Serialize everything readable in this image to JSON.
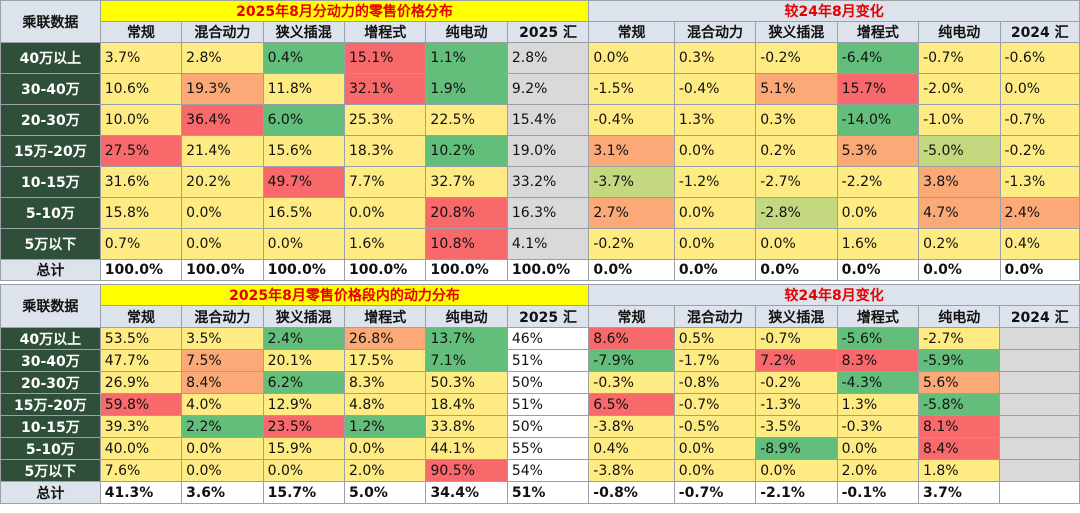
{
  "colors": {
    "red": "#f8696b",
    "orange": "#fbaa77",
    "yellow": "#ffeb84",
    "lime": "#c4d97f",
    "green": "#63be7b",
    "gray": "#d9d9d9",
    "header": "#dde3ec",
    "dark": "#2f4f3a"
  },
  "corner_label": "乘联数据",
  "columns": [
    "常规",
    "混合动力",
    "狭义插混",
    "增程式",
    "纯电动",
    "2025 汇"
  ],
  "columns_change": [
    "常规",
    "混合动力",
    "狭义插混",
    "增程式",
    "纯电动",
    "2024 汇"
  ],
  "chart_data": [
    {
      "type": "table",
      "title": "2025年8月分动力的零售价格分布",
      "change_title": "较24年8月变化",
      "rows": [
        {
          "label": "40万以上",
          "values": [
            "3.7%",
            "2.8%",
            "0.4%",
            "15.1%",
            "1.1%",
            "2.8%"
          ],
          "change": [
            "0.0%",
            "0.3%",
            "-0.2%",
            "-6.4%",
            "-0.7%",
            "-0.6%"
          ]
        },
        {
          "label": "30-40万",
          "values": [
            "10.6%",
            "19.3%",
            "11.8%",
            "32.1%",
            "1.9%",
            "9.2%"
          ],
          "change": [
            "-1.5%",
            "-0.4%",
            "5.1%",
            "15.7%",
            "-2.0%",
            "0.0%"
          ]
        },
        {
          "label": "20-30万",
          "values": [
            "10.0%",
            "36.4%",
            "6.0%",
            "25.3%",
            "22.5%",
            "15.4%"
          ],
          "change": [
            "-0.4%",
            "1.3%",
            "0.3%",
            "-14.0%",
            "-1.0%",
            "-0.7%"
          ]
        },
        {
          "label": "15万-20万",
          "values": [
            "27.5%",
            "21.4%",
            "15.6%",
            "18.3%",
            "10.2%",
            "19.0%"
          ],
          "change": [
            "3.1%",
            "0.0%",
            "0.2%",
            "5.3%",
            "-5.0%",
            "-0.2%"
          ]
        },
        {
          "label": "10-15万",
          "values": [
            "31.6%",
            "20.2%",
            "49.7%",
            "7.7%",
            "32.7%",
            "33.2%"
          ],
          "change": [
            "-3.7%",
            "-1.2%",
            "-2.7%",
            "-2.2%",
            "3.8%",
            "-1.3%"
          ]
        },
        {
          "label": "5-10万",
          "values": [
            "15.8%",
            "0.0%",
            "16.5%",
            "0.0%",
            "20.8%",
            "16.3%"
          ],
          "change": [
            "2.7%",
            "0.0%",
            "-2.8%",
            "0.0%",
            "4.7%",
            "2.4%"
          ]
        },
        {
          "label": "5万以下",
          "values": [
            "0.7%",
            "0.0%",
            "0.0%",
            "1.6%",
            "10.8%",
            "4.1%"
          ],
          "change": [
            "-0.2%",
            "0.0%",
            "0.0%",
            "1.6%",
            "0.2%",
            "0.4%"
          ]
        }
      ],
      "total": {
        "label": "总计",
        "values": [
          "100.0%",
          "100.0%",
          "100.0%",
          "100.0%",
          "100.0%",
          "100.0%"
        ],
        "change": [
          "0.0%",
          "0.0%",
          "0.0%",
          "0.0%",
          "0.0%",
          "0.0%"
        ]
      },
      "fills": [
        [
          "yellow",
          "yellow",
          "green",
          "red",
          "green",
          "gray",
          "yellow",
          "yellow",
          "yellow",
          "green",
          "yellow",
          "yellow"
        ],
        [
          "yellow",
          "orange",
          "yellow",
          "red",
          "green",
          "gray",
          "yellow",
          "yellow",
          "orange",
          "red",
          "yellow",
          "yellow"
        ],
        [
          "yellow",
          "red",
          "green",
          "yellow",
          "yellow",
          "gray",
          "yellow",
          "yellow",
          "yellow",
          "green",
          "yellow",
          "yellow"
        ],
        [
          "red",
          "yellow",
          "yellow",
          "yellow",
          "green",
          "gray",
          "orange",
          "yellow",
          "yellow",
          "orange",
          "lime",
          "yellow"
        ],
        [
          "yellow",
          "yellow",
          "red",
          "yellow",
          "yellow",
          "gray",
          "lime",
          "yellow",
          "yellow",
          "yellow",
          "orange",
          "yellow"
        ],
        [
          "yellow",
          "yellow",
          "yellow",
          "yellow",
          "red",
          "gray",
          "orange",
          "yellow",
          "lime",
          "yellow",
          "orange",
          "orange"
        ],
        [
          "yellow",
          "yellow",
          "yellow",
          "yellow",
          "red",
          "gray",
          "yellow",
          "yellow",
          "yellow",
          "yellow",
          "yellow",
          "yellow"
        ]
      ]
    },
    {
      "type": "table",
      "title": "2025年8月零售价格段内的动力分布",
      "change_title": "较24年8月变化",
      "rows": [
        {
          "label": "40万以上",
          "values": [
            "53.5%",
            "3.5%",
            "2.4%",
            "26.8%",
            "13.7%",
            "46%"
          ],
          "change": [
            "8.6%",
            "0.5%",
            "-0.7%",
            "-5.6%",
            "-2.7%",
            ""
          ]
        },
        {
          "label": "30-40万",
          "values": [
            "47.7%",
            "7.5%",
            "20.1%",
            "17.5%",
            "7.1%",
            "51%"
          ],
          "change": [
            "-7.9%",
            "-1.7%",
            "7.2%",
            "8.3%",
            "-5.9%",
            ""
          ]
        },
        {
          "label": "20-30万",
          "values": [
            "26.9%",
            "8.4%",
            "6.2%",
            "8.3%",
            "50.3%",
            "50%"
          ],
          "change": [
            "-0.3%",
            "-0.8%",
            "-0.2%",
            "-4.3%",
            "5.6%",
            ""
          ]
        },
        {
          "label": "15万-20万",
          "values": [
            "59.8%",
            "4.0%",
            "12.9%",
            "4.8%",
            "18.4%",
            "51%"
          ],
          "change": [
            "6.5%",
            "-0.7%",
            "-1.3%",
            "1.3%",
            "-5.8%",
            ""
          ]
        },
        {
          "label": "10-15万",
          "values": [
            "39.3%",
            "2.2%",
            "23.5%",
            "1.2%",
            "33.8%",
            "50%"
          ],
          "change": [
            "-3.8%",
            "-0.5%",
            "-3.5%",
            "-0.3%",
            "8.1%",
            ""
          ]
        },
        {
          "label": "5-10万",
          "values": [
            "40.0%",
            "0.0%",
            "15.9%",
            "0.0%",
            "44.1%",
            "55%"
          ],
          "change": [
            "0.4%",
            "0.0%",
            "-8.9%",
            "0.0%",
            "8.4%",
            ""
          ]
        },
        {
          "label": "5万以下",
          "values": [
            "7.6%",
            "0.0%",
            "0.0%",
            "2.0%",
            "90.5%",
            "54%"
          ],
          "change": [
            "-3.8%",
            "0.0%",
            "0.0%",
            "2.0%",
            "1.8%",
            ""
          ]
        }
      ],
      "total": {
        "label": "总计",
        "values": [
          "41.3%",
          "3.6%",
          "15.7%",
          "5.0%",
          "34.4%",
          "51%"
        ],
        "change": [
          "-0.8%",
          "-0.7%",
          "-2.1%",
          "-0.1%",
          "3.7%",
          ""
        ]
      },
      "fills": [
        [
          "yellow",
          "yellow",
          "green",
          "orange",
          "green",
          "white",
          "red",
          "yellow",
          "yellow",
          "green",
          "yellow",
          "gray"
        ],
        [
          "yellow",
          "orange",
          "yellow",
          "yellow",
          "green",
          "white",
          "green",
          "yellow",
          "red",
          "red",
          "green",
          "gray"
        ],
        [
          "yellow",
          "orange",
          "green",
          "yellow",
          "yellow",
          "white",
          "yellow",
          "yellow",
          "yellow",
          "green",
          "orange",
          "gray"
        ],
        [
          "red",
          "yellow",
          "yellow",
          "yellow",
          "yellow",
          "white",
          "red",
          "yellow",
          "yellow",
          "yellow",
          "green",
          "gray"
        ],
        [
          "yellow",
          "green",
          "red",
          "green",
          "yellow",
          "white",
          "yellow",
          "yellow",
          "yellow",
          "yellow",
          "red",
          "gray"
        ],
        [
          "yellow",
          "yellow",
          "yellow",
          "yellow",
          "yellow",
          "white",
          "yellow",
          "yellow",
          "green",
          "yellow",
          "red",
          "gray"
        ],
        [
          "yellow",
          "yellow",
          "yellow",
          "yellow",
          "red",
          "white",
          "yellow",
          "yellow",
          "yellow",
          "yellow",
          "yellow",
          "gray"
        ]
      ]
    }
  ]
}
